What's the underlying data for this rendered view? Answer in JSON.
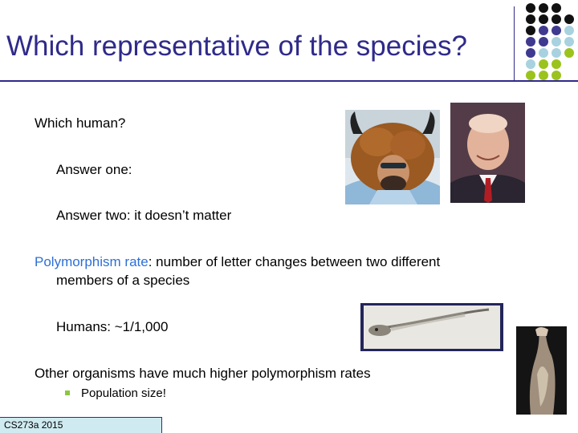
{
  "title": "Which representative of the species?",
  "body": {
    "line1": "Which human?",
    "line2": "Answer one:",
    "line3": "Answer two: it doesn’t matter",
    "line4_accent": "Polymorphism rate",
    "line4_rest": ": number of letter changes between two different",
    "line4_cont": "members of a species",
    "line5": "Humans: ~1/1,000",
    "line6": "Other organisms have much higher polymorphism rates",
    "sub_bullet": "Population size!"
  },
  "footer": "CS273a 2015",
  "colors": {
    "title": "#2f2a8a",
    "accent": "#2e6fd6",
    "bullet": "#8cc63f",
    "dot_black": "#111111",
    "dot_purple": "#3f3a8f",
    "dot_lightblue": "#a8d2df",
    "dot_green": "#9bc31d",
    "footer_bg": "#cfeaf0"
  },
  "images": [
    "horned-fur-hat-man-photo",
    "suited-man-portrait-photo",
    "larva-drawing-photo",
    "translucent-organism-photo"
  ]
}
